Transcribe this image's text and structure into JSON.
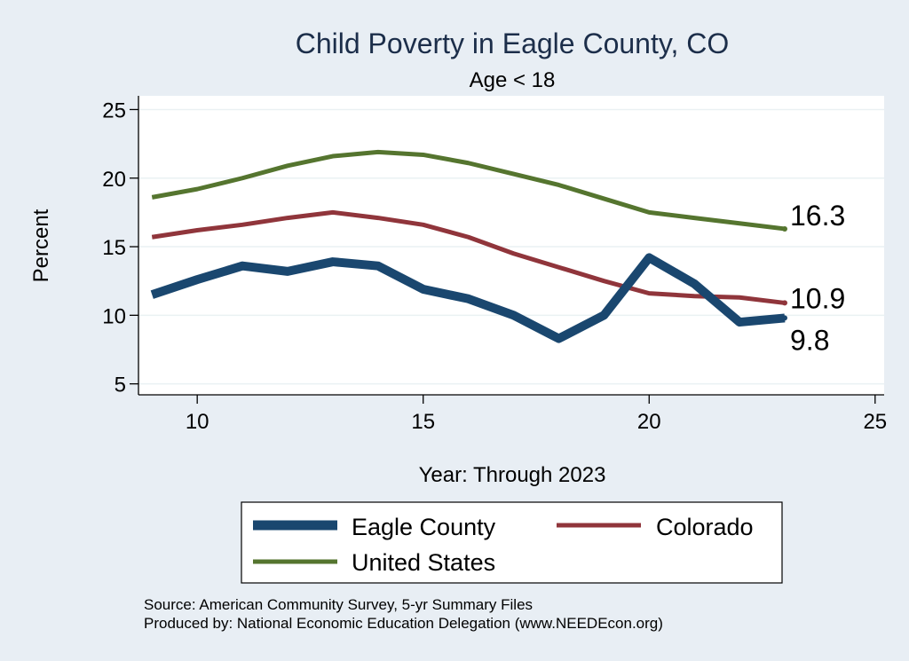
{
  "chart_data": {
    "type": "line",
    "title": "Child Poverty in Eagle County, CO",
    "subtitle": "Age < 18",
    "xlabel": "Year: Through 2023",
    "ylabel": "Percent",
    "xlim": [
      8.7,
      25.2
    ],
    "ylim": [
      4.2,
      26.0
    ],
    "xticks": [
      10,
      15,
      20,
      25
    ],
    "yticks": [
      5,
      10,
      15,
      20,
      25
    ],
    "grid": true,
    "x": [
      9,
      10,
      11,
      12,
      13,
      14,
      15,
      16,
      17,
      18,
      19,
      20,
      21,
      22,
      23
    ],
    "series": [
      {
        "name": "Eagle County",
        "color": "#1a476f",
        "values": [
          11.5,
          12.6,
          13.6,
          13.2,
          13.9,
          13.6,
          11.9,
          11.2,
          10.0,
          8.3,
          10.0,
          14.2,
          12.3,
          9.5,
          9.8
        ],
        "end_label": "9.8"
      },
      {
        "name": "Colorado",
        "color": "#90353b",
        "values": [
          15.7,
          16.2,
          16.6,
          17.1,
          17.5,
          17.1,
          16.6,
          15.7,
          14.5,
          13.5,
          12.5,
          11.6,
          11.4,
          11.3,
          10.9
        ],
        "end_label": "10.9"
      },
      {
        "name": "United States",
        "color": "#55752f",
        "values": [
          18.6,
          19.2,
          20.0,
          20.9,
          21.6,
          21.9,
          21.7,
          21.1,
          20.3,
          19.5,
          18.5,
          17.5,
          17.1,
          16.7,
          16.3
        ],
        "end_label": "16.3"
      }
    ],
    "legend": {
      "position": "bottom",
      "entries": [
        "Eagle County",
        "Colorado",
        "United States"
      ]
    },
    "notes": [
      "Source: American Community Survey, 5-yr Summary Files",
      "Produced by: National Economic Education Delegation (www.NEEDEcon.org)"
    ]
  },
  "colors": {
    "background": "#e8eef4",
    "plot_background": "#ffffff",
    "grid": "#eaf1f3",
    "title": "#1c2e4a"
  }
}
